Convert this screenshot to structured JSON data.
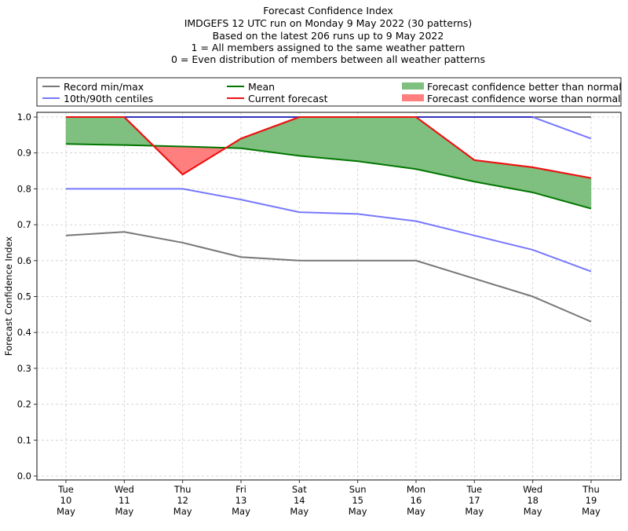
{
  "chart_data": {
    "type": "line",
    "title_lines": [
      "Forecast Confidence Index",
      "IMDGEFS 12 UTC run on Monday 9 May 2022 (30 patterns)",
      "Based on the latest 206 runs up to 9 May 2022",
      "1 = All members assigned to the same weather pattern",
      "0 = Even distribution of members between all weather patterns"
    ],
    "ylabel": "Forecast Confidence Index",
    "xlabel": "",
    "ylim": [
      0.0,
      1.0
    ],
    "yticks": [
      "0.0",
      "0.1",
      "0.2",
      "0.3",
      "0.4",
      "0.5",
      "0.6",
      "0.7",
      "0.8",
      "0.9",
      "1.0"
    ],
    "grid": true,
    "categories": [
      [
        "Tue",
        "10",
        "May"
      ],
      [
        "Wed",
        "11",
        "May"
      ],
      [
        "Thu",
        "12",
        "May"
      ],
      [
        "Fri",
        "13",
        "May"
      ],
      [
        "Sat",
        "14",
        "May"
      ],
      [
        "Sun",
        "15",
        "May"
      ],
      [
        "Mon",
        "16",
        "May"
      ],
      [
        "Tue",
        "17",
        "May"
      ],
      [
        "Wed",
        "18",
        "May"
      ],
      [
        "Thu",
        "19",
        "May"
      ]
    ],
    "series": [
      {
        "name": "Record min",
        "color": "#777777",
        "values": [
          0.67,
          0.68,
          0.65,
          0.61,
          0.6,
          0.6,
          0.6,
          0.55,
          0.5,
          0.43
        ]
      },
      {
        "name": "Record max",
        "color": "#777777",
        "values": [
          1.0,
          1.0,
          1.0,
          1.0,
          1.0,
          1.0,
          1.0,
          1.0,
          1.0,
          1.0
        ]
      },
      {
        "name": "10th centile",
        "color": "#7777ff",
        "values": [
          0.8,
          0.8,
          0.8,
          0.77,
          0.735,
          0.73,
          0.71,
          0.67,
          0.63,
          0.57
        ]
      },
      {
        "name": "90th centile",
        "color": "#7777ff",
        "values": [
          1.0,
          1.0,
          1.0,
          1.0,
          1.0,
          1.0,
          1.0,
          1.0,
          1.0,
          0.94
        ]
      },
      {
        "name": "Mean",
        "color": "#007700",
        "values": [
          0.925,
          0.922,
          0.918,
          0.913,
          0.892,
          0.877,
          0.855,
          0.82,
          0.79,
          0.745
        ]
      },
      {
        "name": "Current forecast",
        "color": "#ee1111",
        "values": [
          1.0,
          1.0,
          0.84,
          0.94,
          1.0,
          1.0,
          1.0,
          0.88,
          0.86,
          0.83
        ]
      }
    ],
    "fills": {
      "better_color": "#7fbf7f",
      "worse_color": "#ff7f7f"
    },
    "legend": {
      "placement": "top",
      "entries": [
        {
          "label": "Record min/max",
          "kind": "line",
          "color": "#777777"
        },
        {
          "label": "10th/90th centiles",
          "kind": "line",
          "color": "#7777ff"
        },
        {
          "label": "Mean",
          "kind": "line",
          "color": "#007700"
        },
        {
          "label": "Current forecast",
          "kind": "line",
          "color": "#ee1111"
        },
        {
          "label": "Forecast confidence better than normal",
          "kind": "patch",
          "color": "#7fbf7f"
        },
        {
          "label": "Forecast confidence worse than normal",
          "kind": "patch",
          "color": "#ff7f7f"
        }
      ]
    }
  }
}
